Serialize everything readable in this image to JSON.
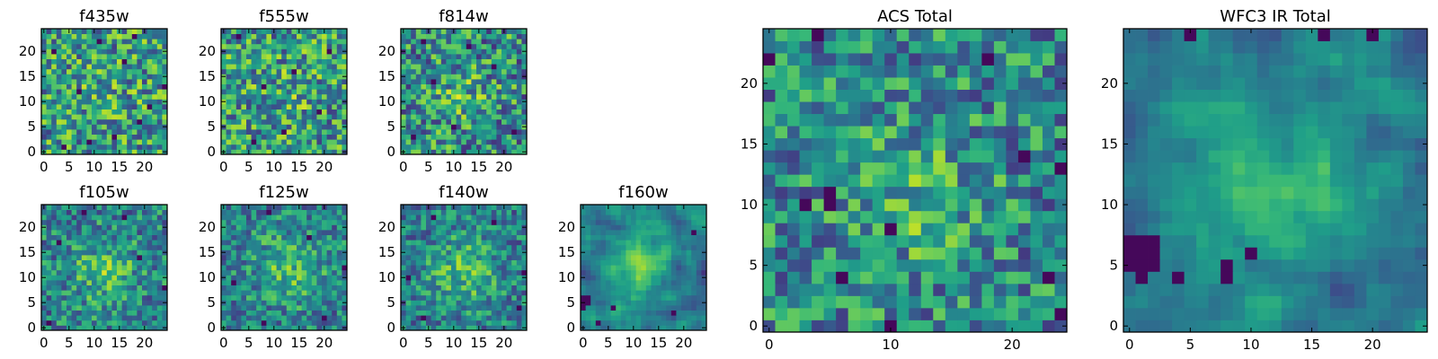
{
  "figure_title": "",
  "colormap": "viridis",
  "chart_data": [
    {
      "type": "heatmap",
      "name": "f435w",
      "title": "f435w",
      "grid_size": 25,
      "xlim": [
        0,
        25
      ],
      "ylim": [
        0,
        25
      ],
      "xticks": [
        0,
        5,
        10,
        15,
        20
      ],
      "xtick_labels": [
        "0",
        "5",
        "10",
        "15",
        "20"
      ],
      "yticks": [
        0,
        5,
        10,
        15,
        20
      ],
      "ytick_labels": [
        "0",
        "5",
        "10",
        "15",
        "20"
      ],
      "texture": "noise",
      "source_peak": 0.15,
      "source_center": [
        12,
        11
      ],
      "source_width": 4,
      "noise": 0.45,
      "dark_pixels": [
        [
          4,
          1
        ],
        [
          9,
          2
        ],
        [
          14,
          3
        ],
        [
          19,
          6
        ],
        [
          21,
          9
        ],
        [
          7,
          12
        ],
        [
          24,
          13
        ],
        [
          16,
          18
        ],
        [
          2,
          20
        ],
        [
          11,
          22
        ],
        [
          18,
          23
        ]
      ]
    },
    {
      "type": "heatmap",
      "name": "f555w",
      "title": "f555w",
      "grid_size": 25,
      "xlim": [
        0,
        25
      ],
      "ylim": [
        0,
        25
      ],
      "xticks": [
        0,
        5,
        10,
        15,
        20
      ],
      "xtick_labels": [
        "0",
        "5",
        "10",
        "15",
        "20"
      ],
      "yticks": [
        0,
        5,
        10,
        15,
        20
      ],
      "ytick_labels": [
        "0",
        "5",
        "10",
        "15",
        "20"
      ],
      "texture": "noise",
      "source_peak": 0.15,
      "source_center": [
        12,
        11
      ],
      "source_width": 4,
      "noise": 0.45,
      "dark_pixels": [
        [
          6,
          2
        ],
        [
          12,
          4
        ],
        [
          19,
          8
        ],
        [
          8,
          13
        ],
        [
          14,
          16
        ],
        [
          21,
          20
        ],
        [
          3,
          23
        ]
      ]
    },
    {
      "type": "heatmap",
      "name": "f814w",
      "title": "f814w",
      "grid_size": 25,
      "xlim": [
        0,
        25
      ],
      "ylim": [
        0,
        25
      ],
      "xticks": [
        0,
        5,
        10,
        15,
        20
      ],
      "xtick_labels": [
        "0",
        "5",
        "10",
        "15",
        "20"
      ],
      "yticks": [
        0,
        5,
        10,
        15,
        20
      ],
      "ytick_labels": [
        "0",
        "5",
        "10",
        "15",
        "20"
      ],
      "texture": "noise",
      "source_peak": 0.35,
      "source_center": [
        11,
        11
      ],
      "source_width": 4,
      "noise": 0.45,
      "dark_pixels": [
        [
          2,
          3
        ],
        [
          10,
          5
        ],
        [
          22,
          4
        ],
        [
          6,
          14
        ],
        [
          18,
          17
        ],
        [
          13,
          21
        ],
        [
          4,
          22
        ]
      ]
    },
    {
      "type": "heatmap",
      "name": "f105w",
      "title": "f105w",
      "grid_size": 25,
      "xlim": [
        0,
        25
      ],
      "ylim": [
        0,
        25
      ],
      "xticks": [
        0,
        5,
        10,
        15,
        20
      ],
      "xtick_labels": [
        "0",
        "5",
        "10",
        "15",
        "20"
      ],
      "yticks": [
        0,
        5,
        10,
        15,
        20
      ],
      "ytick_labels": [
        "0",
        "5",
        "10",
        "15",
        "20"
      ],
      "texture": "noise",
      "source_peak": 0.55,
      "source_center": [
        12,
        11
      ],
      "source_width": 5,
      "noise": 0.35,
      "dark_pixels": [
        [
          1,
          1
        ],
        [
          24,
          8
        ],
        [
          19,
          14
        ],
        [
          3,
          17
        ],
        [
          16,
          22
        ],
        [
          8,
          23
        ]
      ]
    },
    {
      "type": "heatmap",
      "name": "f125w",
      "title": "f125w",
      "grid_size": 25,
      "xlim": [
        0,
        25
      ],
      "ylim": [
        0,
        25
      ],
      "xticks": [
        0,
        5,
        10,
        15,
        20
      ],
      "xtick_labels": [
        "0",
        "5",
        "10",
        "15",
        "20"
      ],
      "yticks": [
        0,
        5,
        10,
        15,
        20
      ],
      "ytick_labels": [
        "0",
        "5",
        "10",
        "15",
        "20"
      ],
      "texture": "noise",
      "source_peak": 0.6,
      "source_center": [
        13,
        12
      ],
      "source_width": 5,
      "noise": 0.33,
      "dark_pixels": [
        [
          8,
          1
        ],
        [
          20,
          2
        ],
        [
          2,
          9
        ],
        [
          24,
          12
        ],
        [
          17,
          18
        ],
        [
          9,
          23
        ]
      ]
    },
    {
      "type": "heatmap",
      "name": "f140w",
      "title": "f140w",
      "grid_size": 25,
      "xlim": [
        0,
        25
      ],
      "ylim": [
        0,
        25
      ],
      "xticks": [
        0,
        5,
        10,
        15,
        20
      ],
      "xtick_labels": [
        "0",
        "5",
        "10",
        "15",
        "20"
      ],
      "yticks": [
        0,
        5,
        10,
        15,
        20
      ],
      "ytick_labels": [
        "0",
        "5",
        "10",
        "15",
        "20"
      ],
      "texture": "noise",
      "source_peak": 0.65,
      "source_center": [
        12,
        11
      ],
      "source_width": 5,
      "noise": 0.32,
      "dark_pixels": [
        [
          4,
          2
        ],
        [
          23,
          4
        ],
        [
          1,
          10
        ],
        [
          24,
          11
        ],
        [
          18,
          21
        ],
        [
          6,
          22
        ]
      ]
    },
    {
      "type": "heatmap",
      "name": "f160w",
      "title": "f160w",
      "grid_size": 25,
      "xlim": [
        0,
        25
      ],
      "ylim": [
        0,
        25
      ],
      "xticks": [
        0,
        5,
        10,
        15,
        20
      ],
      "xtick_labels": [
        "0",
        "5",
        "10",
        "15",
        "20"
      ],
      "yticks": [
        0,
        5,
        10,
        15,
        20
      ],
      "ytick_labels": [
        "0",
        "5",
        "10",
        "15",
        "20"
      ],
      "texture": "smooth",
      "source_peak": 0.7,
      "source_center": [
        11,
        12
      ],
      "source_width": 5,
      "noise": 0.22,
      "dark_pixels": [
        [
          0,
          6
        ],
        [
          0,
          5
        ],
        [
          1,
          6
        ],
        [
          1,
          5
        ],
        [
          0,
          4
        ],
        [
          6,
          4
        ],
        [
          3,
          1
        ],
        [
          18,
          3
        ],
        [
          22,
          19
        ]
      ]
    },
    {
      "type": "heatmap",
      "name": "ACS Total",
      "title": "ACS Total",
      "grid_size": 25,
      "xlim": [
        0,
        25
      ],
      "ylim": [
        0,
        25
      ],
      "xticks": [
        0,
        10,
        20
      ],
      "xtick_labels": [
        "0",
        "10",
        "20"
      ],
      "yticks": [
        0,
        5,
        10,
        15,
        20
      ],
      "ytick_labels": [
        "0",
        "5",
        "10",
        "15",
        "20"
      ],
      "texture": "noise",
      "source_peak": 0.45,
      "source_center": [
        12,
        11
      ],
      "source_width": 4,
      "noise": 0.38,
      "dark_pixels": [
        [
          4,
          24
        ],
        [
          18,
          22
        ],
        [
          0,
          22
        ],
        [
          21,
          14
        ],
        [
          24,
          13
        ],
        [
          5,
          11
        ],
        [
          5,
          10
        ],
        [
          3,
          10
        ],
        [
          10,
          8
        ],
        [
          6,
          4
        ],
        [
          23,
          4
        ],
        [
          24,
          1
        ],
        [
          10,
          0
        ]
      ]
    },
    {
      "type": "heatmap",
      "name": "WFC3 IR Total",
      "title": "WFC3 IR Total",
      "grid_size": 25,
      "xlim": [
        0,
        25
      ],
      "ylim": [
        0,
        25
      ],
      "xticks": [
        0,
        5,
        10,
        15,
        20
      ],
      "xtick_labels": [
        "0",
        "5",
        "10",
        "15",
        "20"
      ],
      "yticks": [
        0,
        5,
        10,
        15,
        20
      ],
      "ytick_labels": [
        "0",
        "5",
        "10",
        "15",
        "20"
      ],
      "texture": "smooth",
      "source_peak": 0.75,
      "source_center": [
        12,
        12
      ],
      "source_width": 5,
      "noise": 0.18,
      "dark_pixels": [
        [
          0,
          7
        ],
        [
          1,
          7
        ],
        [
          2,
          7
        ],
        [
          0,
          6
        ],
        [
          1,
          6
        ],
        [
          2,
          6
        ],
        [
          0,
          5
        ],
        [
          1,
          5
        ],
        [
          2,
          5
        ],
        [
          1,
          4
        ],
        [
          4,
          4
        ],
        [
          8,
          4
        ],
        [
          8,
          5
        ],
        [
          10,
          6
        ],
        [
          20,
          24
        ],
        [
          5,
          24
        ],
        [
          16,
          24
        ]
      ]
    }
  ]
}
